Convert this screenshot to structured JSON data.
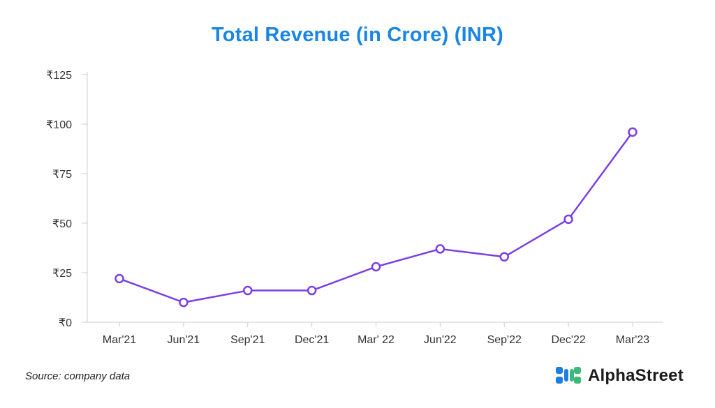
{
  "title": "Total Revenue (in Crore) (INR)",
  "source": "Source: company data",
  "brand": {
    "name": "AlphaStreet",
    "logo_icon": "alphastreet-logo-icon",
    "colors": {
      "blue": "#1a7fe0",
      "green": "#3cb878"
    }
  },
  "colors": {
    "title": "#1a86e4",
    "line": "#7b3fe4",
    "axis": "#cccccc"
  },
  "chart_data": {
    "type": "line",
    "title": "Total Revenue (in Crore) (INR)",
    "xlabel": "",
    "ylabel": "",
    "categories": [
      "Mar'21",
      "Jun'21",
      "Sep'21",
      "Dec'21",
      "Mar' 22",
      "Jun'22",
      "Sep'22",
      "Dec'22",
      "Mar'23"
    ],
    "series": [
      {
        "name": "Total Revenue",
        "values": [
          22,
          10,
          16,
          16,
          28,
          37,
          33,
          52,
          96
        ]
      }
    ],
    "ylim": [
      0,
      125
    ],
    "yticks": [
      0,
      25,
      50,
      75,
      100,
      125
    ],
    "ytick_labels": [
      "₹0",
      "₹25",
      "₹50",
      "₹75",
      "₹100",
      "₹125"
    ],
    "grid": false,
    "legend": "none"
  }
}
